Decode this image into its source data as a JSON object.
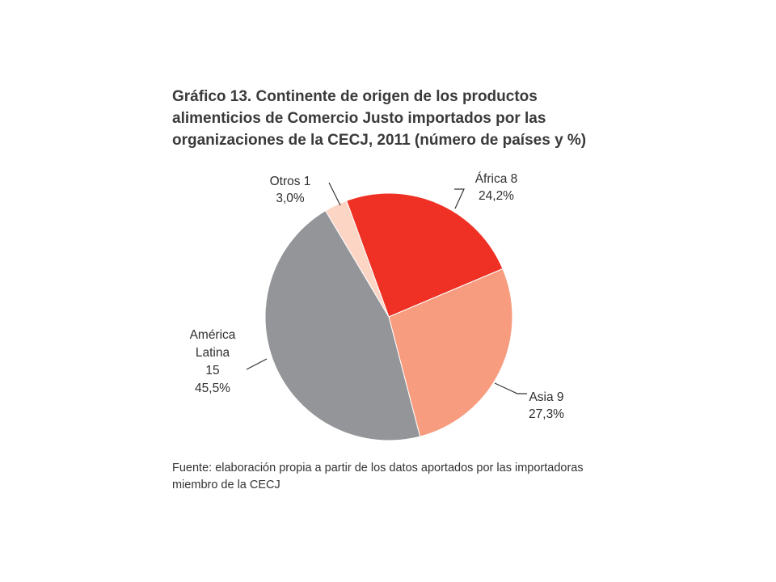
{
  "title_lines": [
    "Gráfico 13. Continente de origen de los productos",
    "alimenticios de Comercio Justo importados por las",
    "organizaciones de la CECJ, 2011 (número de países y %)"
  ],
  "source_lines": [
    "Fuente: elaboración propia a partir de los datos aportados por las importadoras",
    "miembro de la CECJ"
  ],
  "chart_data": {
    "type": "pie",
    "start_angle_deg": -20,
    "direction": "clockwise",
    "slices": [
      {
        "label_lines": [
          "África 8",
          "24,2%"
        ],
        "name": "África",
        "count": 8,
        "percent": 24.2,
        "color": "#ee3124"
      },
      {
        "label_lines": [
          "Asia 9",
          "27,3%"
        ],
        "name": "Asia",
        "count": 9,
        "percent": 27.3,
        "color": "#f79c7e"
      },
      {
        "label_lines": [
          "América",
          "Latina",
          "15",
          "45,5%"
        ],
        "name": "América Latina",
        "count": 15,
        "percent": 45.5,
        "color": "#939598"
      },
      {
        "label_lines": [
          "Otros 1",
          "3,0%"
        ],
        "name": "Otros",
        "count": 1,
        "percent": 3.0,
        "color": "#fcd5c5"
      }
    ]
  }
}
